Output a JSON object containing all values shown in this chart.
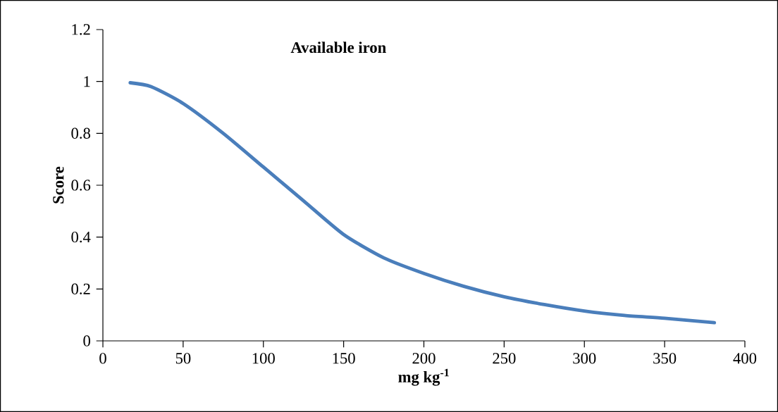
{
  "chart_data": {
    "type": "line",
    "title": "Available iron",
    "xlabel": "mg kg$^{-1}$",
    "ylabel": "Score",
    "x": [
      17,
      30,
      50,
      75,
      100,
      125,
      150,
      175,
      200,
      225,
      250,
      275,
      300,
      325,
      350,
      381
    ],
    "series": [
      {
        "color": "#4a7ebb",
        "values": [
          0.995,
          0.98,
          0.915,
          0.8,
          0.67,
          0.54,
          0.41,
          0.32,
          0.26,
          0.21,
          0.17,
          0.14,
          0.115,
          0.098,
          0.087,
          0.07
        ]
      }
    ],
    "xlim": [
      0,
      400
    ],
    "ylim": [
      0,
      1.2
    ],
    "xticks": [
      0,
      50,
      100,
      150,
      200,
      250,
      300,
      350,
      400
    ],
    "yticks": [
      0,
      0.2,
      0.4,
      0.6,
      0.8,
      1,
      1.2
    ],
    "marker": "none",
    "line_style": "solid"
  }
}
